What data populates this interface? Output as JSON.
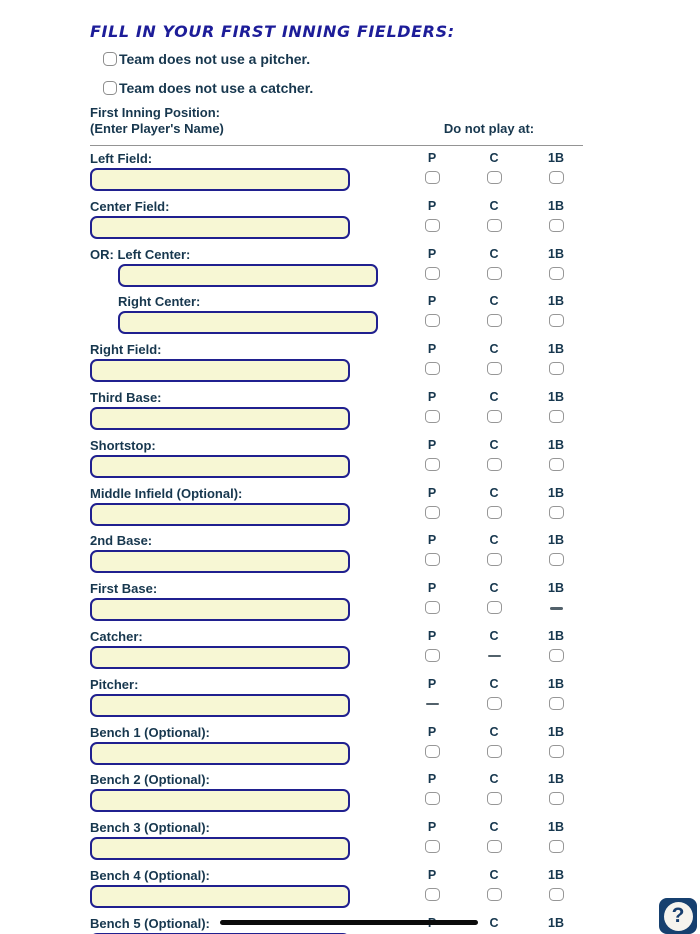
{
  "title": "FILL IN YOUR FIRST INNING FIELDERS:",
  "top_checkboxes": [
    {
      "label": "Team does not use a pitcher.",
      "checked": false
    },
    {
      "label": "Team does not use a catcher.",
      "checked": false
    }
  ],
  "header": {
    "position_line1": "First Inning Position:",
    "position_line2": "(Enter Player's Name)",
    "do_not_play": "Do not play at:",
    "columns": [
      "P",
      "C",
      "1B"
    ]
  },
  "rows": [
    {
      "label": "Left Field:",
      "indent_label": false,
      "indent_input": false,
      "dash_col": null,
      "value": ""
    },
    {
      "label": "Center Field:",
      "indent_label": false,
      "indent_input": false,
      "dash_col": null,
      "value": ""
    },
    {
      "label": "OR: Left Center:",
      "indent_label": false,
      "indent_input": true,
      "dash_col": null,
      "value": ""
    },
    {
      "label": "Right Center:",
      "indent_label": true,
      "indent_input": true,
      "dash_col": null,
      "value": ""
    },
    {
      "label": "Right Field:",
      "indent_label": false,
      "indent_input": false,
      "dash_col": null,
      "value": ""
    },
    {
      "label": "Third Base:",
      "indent_label": false,
      "indent_input": false,
      "dash_col": null,
      "value": ""
    },
    {
      "label": "Shortstop:",
      "indent_label": false,
      "indent_input": false,
      "dash_col": null,
      "value": ""
    },
    {
      "label": "Middle Infield (Optional):",
      "indent_label": false,
      "indent_input": false,
      "dash_col": null,
      "value": ""
    },
    {
      "label": "2nd Base:",
      "indent_label": false,
      "indent_input": false,
      "dash_col": null,
      "value": ""
    },
    {
      "label": "First Base:",
      "indent_label": false,
      "indent_input": false,
      "dash_col": "1B",
      "value": ""
    },
    {
      "label": "Catcher:",
      "indent_label": false,
      "indent_input": false,
      "dash_col": "C",
      "value": ""
    },
    {
      "label": "Pitcher:",
      "indent_label": false,
      "indent_input": false,
      "dash_col": "P",
      "value": ""
    },
    {
      "label": "Bench 1 (Optional):",
      "indent_label": false,
      "indent_input": false,
      "dash_col": null,
      "value": ""
    },
    {
      "label": "Bench 2 (Optional):",
      "indent_label": false,
      "indent_input": false,
      "dash_col": null,
      "value": ""
    },
    {
      "label": "Bench 3 (Optional):",
      "indent_label": false,
      "indent_input": false,
      "dash_col": null,
      "value": ""
    },
    {
      "label": "Bench 4 (Optional):",
      "indent_label": false,
      "indent_input": false,
      "dash_col": null,
      "value": ""
    },
    {
      "label": "Bench 5 (Optional):",
      "indent_label": false,
      "indent_input": false,
      "dash_col": null,
      "value": ""
    }
  ],
  "help_button": {
    "label": "?"
  },
  "colors": {
    "title_navy": "#1d1d99",
    "text_navy": "#17374e",
    "input_background": "#f7f7d4",
    "input_border": "#20208f",
    "checkbox_border": "#979797",
    "divider_gray": "#949494",
    "dash_gray": "#52616b",
    "help_button_navy": "#16406f",
    "ink_line_black": "#0b0b0b"
  }
}
